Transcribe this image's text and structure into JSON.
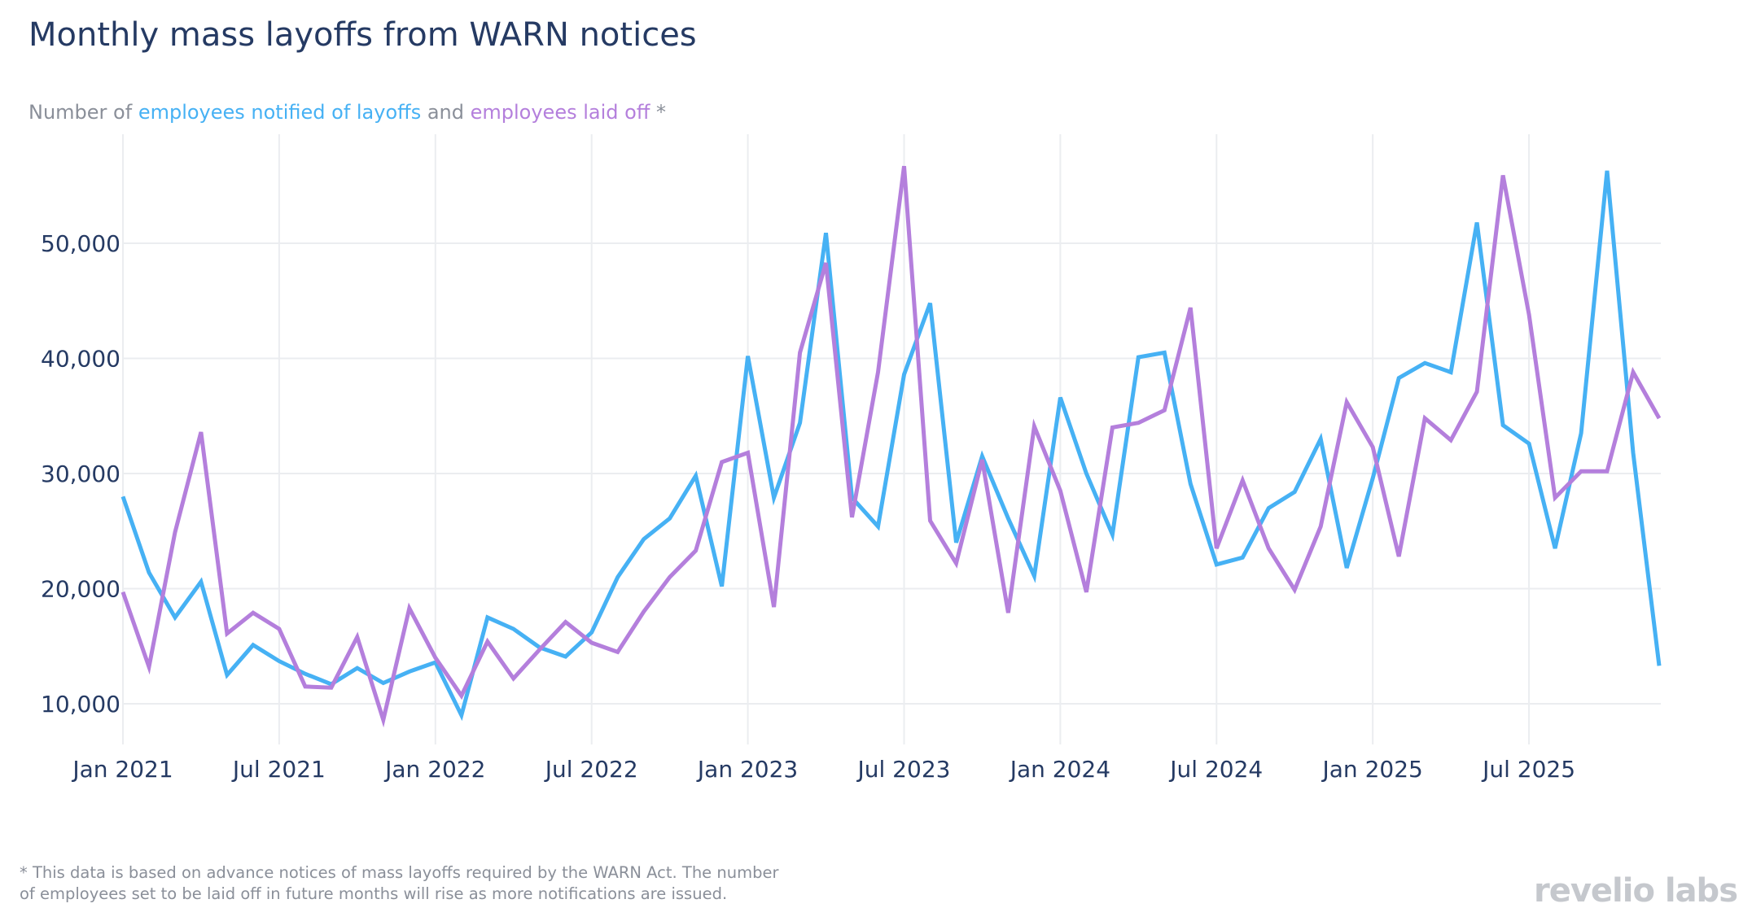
{
  "title": "Monthly mass layoffs from WARN notices",
  "subtitle": {
    "prefix": "Number of ",
    "series1": "employees notified of layoffs",
    "middle": " and ",
    "series2": "employees laid off",
    "suffix": " *"
  },
  "footnote": {
    "line1": "* This data is based on advance notices of mass layoffs required by the WARN Act. The number",
    "line2": "of employees set to be laid off in future months will rise as more notifications are issued."
  },
  "logo": "revelio labs",
  "chart_data": {
    "type": "line",
    "title": "Monthly mass layoffs from WARN notices",
    "xlabel": "",
    "ylabel": "",
    "x_start": "2021-01",
    "x_end": "2025-12",
    "x_ticks": [
      "Jan 2021",
      "Jul 2021",
      "Jan 2022",
      "Jul 2022",
      "Jan 2023",
      "Jul 2023",
      "Jan 2024",
      "Jul 2024",
      "Jan 2025",
      "Jul 2025"
    ],
    "y_ticks": [
      10000,
      20000,
      30000,
      40000,
      50000
    ],
    "y_tick_labels": [
      "10,000",
      "20,000",
      "30,000",
      "40,000",
      "50,000"
    ],
    "ylim": [
      6000,
      59000
    ],
    "grid": true,
    "legend": "none (series named in subtitle)",
    "series": [
      {
        "name": "employees notified of layoffs",
        "color": "#46b1f4",
        "values": [
          28000,
          21400,
          17500,
          20600,
          12500,
          15100,
          13700,
          12600,
          11700,
          13100,
          11800,
          12800,
          13600,
          9000,
          17500,
          16500,
          14900,
          14100,
          16200,
          21000,
          24300,
          26100,
          29800,
          20200,
          40200,
          27900,
          34400,
          50900,
          27900,
          25400,
          38600,
          44800,
          24000,
          31500,
          26100,
          21100,
          36600,
          30000,
          24700,
          40100,
          40500,
          29100,
          22100,
          22700,
          27000,
          28400,
          33000,
          21800,
          29600,
          38300,
          39600,
          38800,
          51800,
          34200,
          32600,
          23500,
          33500,
          56300,
          31800,
          13300
        ]
      },
      {
        "name": "employees laid off",
        "color": "#b47fdc",
        "values": [
          19700,
          13200,
          24900,
          33600,
          16100,
          17900,
          16500,
          11500,
          11400,
          15800,
          8600,
          18300,
          14000,
          10700,
          15400,
          12200,
          14700,
          17100,
          15300,
          14500,
          18000,
          21000,
          23300,
          31000,
          31800,
          18400,
          40500,
          48300,
          26200,
          38800,
          56700,
          25900,
          22200,
          31200,
          17900,
          34100,
          28500,
          19700,
          34000,
          34400,
          35500,
          44400,
          23500,
          29400,
          23500,
          19900,
          25400,
          36200,
          32300,
          22800,
          34800,
          32900,
          37100,
          55900,
          43800,
          27900,
          30200,
          30200,
          38800,
          34800
        ]
      }
    ]
  }
}
